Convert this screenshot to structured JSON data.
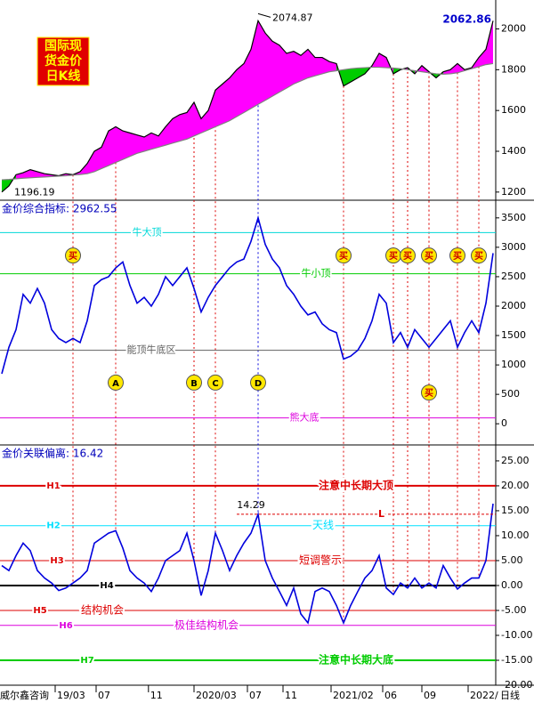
{
  "footer": {
    "brand": "威尔鑫咨询",
    "period": "日线"
  },
  "chart_data": [
    {
      "type": "line",
      "logo": [
        "国际现",
        "货金价",
        "日K线"
      ],
      "series": [
        {
          "color": "#000000",
          "values": [
            1200,
            1230,
            1285,
            1295,
            1310,
            1300,
            1290,
            1285,
            1280,
            1290,
            1285,
            1300,
            1340,
            1400,
            1420,
            1500,
            1520,
            1500,
            1490,
            1480,
            1470,
            1490,
            1475,
            1520,
            1560,
            1580,
            1590,
            1640,
            1560,
            1600,
            1700,
            1730,
            1760,
            1800,
            1830,
            1900,
            2040,
            1980,
            1940,
            1920,
            1880,
            1890,
            1870,
            1900,
            1860,
            1860,
            1840,
            1830,
            1720,
            1740,
            1760,
            1780,
            1820,
            1880,
            1860,
            1780,
            1800,
            1810,
            1780,
            1820,
            1790,
            1760,
            1790,
            1800,
            1830,
            1800,
            1810,
            1860,
            1900,
            2040
          ]
        },
        {
          "color": "#808080",
          "values": [
            1260,
            1262,
            1265,
            1268,
            1270,
            1272,
            1274,
            1276,
            1278,
            1280,
            1283,
            1286,
            1290,
            1300,
            1315,
            1330,
            1345,
            1360,
            1375,
            1390,
            1400,
            1410,
            1420,
            1430,
            1440,
            1450,
            1460,
            1475,
            1490,
            1505,
            1520,
            1535,
            1550,
            1570,
            1590,
            1610,
            1630,
            1650,
            1670,
            1690,
            1710,
            1730,
            1745,
            1760,
            1770,
            1780,
            1790,
            1795,
            1800,
            1805,
            1808,
            1810,
            1812,
            1812,
            1810,
            1808,
            1805,
            1800,
            1795,
            1790,
            1785,
            1780,
            1778,
            1780,
            1785,
            1795,
            1805,
            1815,
            1825,
            1830
          ]
        }
      ],
      "fill_above": "#ff00ff",
      "fill_below": "#00cc00",
      "annotations": [
        {
          "text": "2074.87",
          "value": 2074.87,
          "x": 36
        },
        {
          "text": "1196.19",
          "value": 1196.19,
          "x": 0
        },
        {
          "text": "2062.86",
          "value": 2062.86,
          "x": 69
        }
      ],
      "ylim": [
        1160,
        2120
      ],
      "yticks": [
        1200,
        1400,
        1600,
        1800,
        2000
      ]
    },
    {
      "type": "line",
      "title": "金价综合指标: 2962.55",
      "series": [
        {
          "color": "#0000dd",
          "values": [
            850,
            1300,
            1600,
            2200,
            2050,
            2300,
            2050,
            1600,
            1450,
            1380,
            1450,
            1380,
            1750,
            2350,
            2450,
            2500,
            2650,
            2750,
            2350,
            2050,
            2150,
            2000,
            2200,
            2500,
            2350,
            2500,
            2650,
            2300,
            1900,
            2150,
            2350,
            2500,
            2650,
            2750,
            2800,
            3100,
            3500,
            3050,
            2800,
            2650,
            2350,
            2200,
            2000,
            1850,
            1900,
            1700,
            1600,
            1550,
            1100,
            1150,
            1250,
            1450,
            1750,
            2200,
            2050,
            1380,
            1550,
            1300,
            1600,
            1450,
            1300,
            1450,
            1600,
            1750,
            1300,
            1550,
            1750,
            1550,
            2050,
            2900
          ]
        }
      ],
      "levels": [
        {
          "label": "牛大顶",
          "value": 3250,
          "color": "#00d8d8"
        },
        {
          "label": "牛小顶",
          "value": 2550,
          "color": "#00cc00"
        },
        {
          "label": "能顶牛底区",
          "value": 1250,
          "color": "#606060"
        },
        {
          "label": "熊大底",
          "value": 100,
          "color": "#dd00dd"
        }
      ],
      "signals": [
        {
          "label": "买",
          "x": 10,
          "y": 2860,
          "color": "#dd0000"
        },
        {
          "label": "A",
          "x": 16,
          "y": 700,
          "color": "#dd0000"
        },
        {
          "label": "B",
          "x": 27,
          "y": 700,
          "color": "#dd0000"
        },
        {
          "label": "C",
          "x": 30,
          "y": 700,
          "color": "#dd0000"
        },
        {
          "label": "D",
          "x": 36,
          "y": 700,
          "color": "#0000dd"
        },
        {
          "label": "买",
          "x": 48,
          "y": 2860,
          "color": "#dd0000"
        },
        {
          "label": "买",
          "x": 55,
          "y": 2860,
          "color": "#dd0000"
        },
        {
          "label": "买",
          "x": 57,
          "y": 2860,
          "color": "#dd0000"
        },
        {
          "label": "买",
          "x": 60,
          "y": 2860,
          "color": "#dd0000"
        },
        {
          "label": "买",
          "x": 60,
          "y": 530,
          "color": "#dd0000"
        },
        {
          "label": "买",
          "x": 64,
          "y": 2860,
          "color": "#dd0000"
        },
        {
          "label": "买",
          "x": 67,
          "y": 2860,
          "color": "#dd0000"
        }
      ],
      "ylim": [
        -360,
        3800
      ],
      "yticks": [
        0,
        500,
        1000,
        1500,
        2000,
        2500,
        3000,
        3500
      ]
    },
    {
      "type": "line",
      "title": "金价关联偏离: 16.42",
      "series": [
        {
          "color": "#0000dd",
          "values": [
            4,
            3,
            6,
            8.5,
            7,
            3,
            1.5,
            0.5,
            -1,
            -0.5,
            0.5,
            1.5,
            3,
            8.5,
            9.5,
            10.5,
            11,
            7.5,
            3,
            1.5,
            0.5,
            -1.2,
            1.5,
            5,
            6,
            7,
            10.5,
            5,
            -2,
            3,
            10.5,
            7,
            3,
            6,
            8.5,
            10.5,
            14.29,
            5,
            1.5,
            -1.2,
            -4,
            -0.5,
            -5.7,
            -7.5,
            -1.2,
            -0.5,
            -1.2,
            -4,
            -7.5,
            -4,
            -1.2,
            1.5,
            3,
            6,
            -0.5,
            -1.8,
            0.5,
            -0.5,
            1.5,
            -0.5,
            0.5,
            -0.5,
            4,
            1.5,
            -0.7,
            0.5,
            1.5,
            1.5,
            5,
            16.42
          ]
        }
      ],
      "levels": [
        {
          "name": "H1",
          "label": "注意中长期大顶",
          "value": 20,
          "color": "#dd0000",
          "width": 2
        },
        {
          "name": "H2",
          "label": "天线",
          "value": 12,
          "color": "#00e0ff",
          "width": 1
        },
        {
          "name": "H3",
          "label": "短调警示",
          "value": 5,
          "color": "#dd0000",
          "width": 1
        },
        {
          "name": "H4",
          "value": 0,
          "color": "#000000",
          "width": 2
        },
        {
          "name": "H5",
          "label": "结构机会",
          "value": -5,
          "color": "#dd0000",
          "width": 1
        },
        {
          "name": "H6",
          "label": "极佳结构机会",
          "value": -8,
          "color": "#dd00dd",
          "width": 1
        },
        {
          "name": "H7",
          "label": "注意中长期大底",
          "value": -15,
          "color": "#00cc00",
          "width": 2
        }
      ],
      "annotations": [
        {
          "text": "14.29",
          "value": 14.29,
          "x": 36
        }
      ],
      "marker_line": {
        "label": "L",
        "value": 14.29,
        "from": 33
      },
      "xlim": [
        0,
        69.375
      ],
      "xticks": [
        {
          "value": 7.5,
          "label": "19/03"
        },
        {
          "value": 13.25,
          "label": "07"
        },
        {
          "value": 20.6,
          "label": "11"
        },
        {
          "value": 27,
          "label": "2020/03"
        },
        {
          "value": 34.5,
          "label": "07"
        },
        {
          "value": 39.5,
          "label": "11"
        },
        {
          "value": 46.25,
          "label": "2021/02"
        },
        {
          "value": 53.5,
          "label": "06"
        },
        {
          "value": 59,
          "label": "09"
        },
        {
          "value": 65.5,
          "label": "2022/"
        }
      ],
      "ylim": [
        -20,
        28.2
      ],
      "yticks": [
        {
          "value": 25,
          "label": "25.00"
        },
        {
          "value": 20,
          "label": "20.00"
        },
        {
          "value": 15,
          "label": "15.00"
        },
        {
          "value": 10,
          "label": "10.00"
        },
        {
          "value": 5,
          "label": "5.00"
        },
        {
          "value": 0,
          "label": "0.00"
        },
        {
          "value": -5,
          "label": "-5.00"
        },
        {
          "value": -10,
          "label": "-10.00"
        },
        {
          "value": -15,
          "label": "-15.00"
        },
        {
          "value": -20,
          "label": "-20.00"
        }
      ]
    }
  ]
}
